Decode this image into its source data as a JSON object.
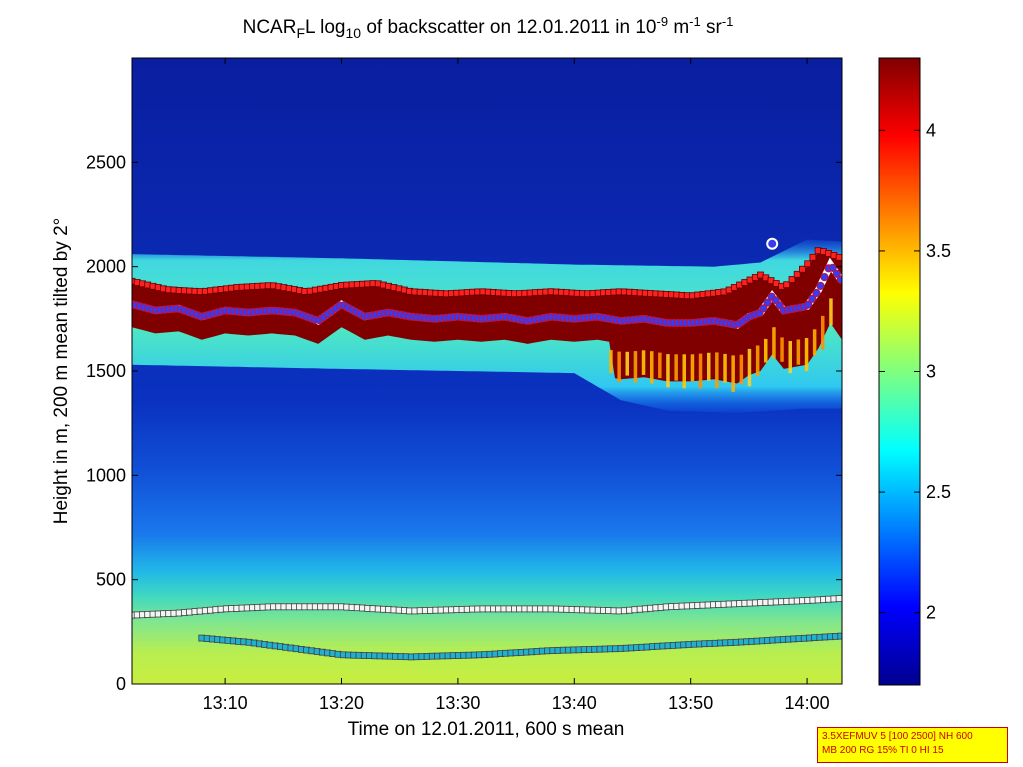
{
  "chart_data": {
    "type": "heatmap",
    "title": "NCAR_F L log10 of backscatter on 12.01.2011 in 10^-9 m^-1 sr^-1",
    "title_parts": {
      "t1": "NCAR",
      "t1_sub": "F",
      "t2": "L log",
      "t2_sub": "10",
      "t3": " of backscatter on 12.01.2011 in 10",
      "t3_sup": "-9",
      "t4": " m",
      "t4_sup": "-1",
      "t5": " sr",
      "t5_sup": "-1"
    },
    "xlabel": "Time on 12.01.2011, 600 s mean",
    "ylabel": "Height in m, 200 m mean tilted by 2°",
    "x_ticks": [
      "13:10",
      "13:20",
      "13:30",
      "13:40",
      "13:50",
      "14:00"
    ],
    "y_ticks": [
      "0",
      "500",
      "1000",
      "1500",
      "2000",
      "2500"
    ],
    "y_tick_values": [
      0,
      500,
      1000,
      1500,
      2000,
      2500
    ],
    "xlim": [
      "13:02",
      "14:03"
    ],
    "ylim": [
      0,
      3000
    ],
    "colorbar": {
      "ticks": [
        "2",
        "2.5",
        "3",
        "3.5",
        "4"
      ],
      "tick_values": [
        2,
        2.5,
        3,
        3.5,
        4
      ],
      "range": [
        1.7,
        4.3
      ],
      "colormap": "jet"
    },
    "layers": {
      "cloud_top_m": [
        [
          "13:02",
          2040
        ],
        [
          "13:20",
          2020
        ],
        [
          "13:40",
          1990
        ],
        [
          "13:52",
          1980
        ],
        [
          "13:56",
          2000
        ],
        [
          "14:00",
          2110
        ],
        [
          "14:03",
          2100
        ]
      ],
      "cloud_base_m": [
        [
          "13:02",
          1560
        ],
        [
          "13:20",
          1540
        ],
        [
          "13:40",
          1520
        ],
        [
          "13:44",
          1390
        ],
        [
          "13:48",
          1340
        ],
        [
          "13:54",
          1330
        ],
        [
          "14:00",
          1350
        ],
        [
          "14:03",
          1350
        ]
      ]
    },
    "series": [
      {
        "marker": "upper boundary",
        "color": "#ff2020",
        "points": [
          [
            "13:02",
            1930
          ],
          [
            "13:05",
            1890
          ],
          [
            "13:08",
            1880
          ],
          [
            "13:11",
            1900
          ],
          [
            "13:14",
            1910
          ],
          [
            "13:17",
            1880
          ],
          [
            "13:20",
            1910
          ],
          [
            "13:23",
            1920
          ],
          [
            "13:26",
            1880
          ],
          [
            "13:29",
            1870
          ],
          [
            "13:32",
            1880
          ],
          [
            "13:35",
            1870
          ],
          [
            "13:38",
            1880
          ],
          [
            "13:41",
            1870
          ],
          [
            "13:44",
            1880
          ],
          [
            "13:47",
            1870
          ],
          [
            "13:50",
            1860
          ],
          [
            "13:53",
            1880
          ],
          [
            "13:56",
            1960
          ],
          [
            "13:58",
            1900
          ],
          [
            "14:00",
            2010
          ],
          [
            "14:01",
            2080
          ],
          [
            "14:03",
            2040
          ]
        ]
      },
      {
        "marker": "main layer (circles)",
        "color": "#3a3af0",
        "points": [
          [
            "13:02",
            1820
          ],
          [
            "13:04",
            1790
          ],
          [
            "13:06",
            1800
          ],
          [
            "13:08",
            1760
          ],
          [
            "13:10",
            1790
          ],
          [
            "13:12",
            1780
          ],
          [
            "13:14",
            1790
          ],
          [
            "13:16",
            1780
          ],
          [
            "13:18",
            1740
          ],
          [
            "13:20",
            1820
          ],
          [
            "13:22",
            1760
          ],
          [
            "13:24",
            1780
          ],
          [
            "13:26",
            1760
          ],
          [
            "13:28",
            1750
          ],
          [
            "13:30",
            1760
          ],
          [
            "13:32",
            1750
          ],
          [
            "13:34",
            1760
          ],
          [
            "13:36",
            1740
          ],
          [
            "13:38",
            1760
          ],
          [
            "13:40",
            1750
          ],
          [
            "13:42",
            1760
          ],
          [
            "13:44",
            1740
          ],
          [
            "13:46",
            1750
          ],
          [
            "13:48",
            1730
          ],
          [
            "13:50",
            1730
          ],
          [
            "13:52",
            1740
          ],
          [
            "13:54",
            1720
          ],
          [
            "13:55",
            1760
          ],
          [
            "13:56",
            1780
          ],
          [
            "13:57",
            1860
          ],
          [
            "13:58",
            1790
          ],
          [
            "14:00",
            1810
          ],
          [
            "14:01",
            1890
          ],
          [
            "14:02",
            2010
          ],
          [
            "14:03",
            1930
          ]
        ]
      },
      {
        "marker": "upper aerosol boundary",
        "color": "#f4f4f4",
        "points": [
          [
            "13:02",
            330
          ],
          [
            "13:06",
            340
          ],
          [
            "13:10",
            360
          ],
          [
            "13:14",
            370
          ],
          [
            "13:20",
            370
          ],
          [
            "13:26",
            350
          ],
          [
            "13:32",
            360
          ],
          [
            "13:38",
            360
          ],
          [
            "13:44",
            350
          ],
          [
            "13:48",
            370
          ],
          [
            "13:52",
            380
          ],
          [
            "13:56",
            390
          ],
          [
            "14:00",
            400
          ],
          [
            "14:03",
            410
          ]
        ]
      },
      {
        "marker": "lower aerosol boundary",
        "color": "#20b0d0",
        "points": [
          [
            "13:08",
            220
          ],
          [
            "13:12",
            200
          ],
          [
            "13:16",
            170
          ],
          [
            "13:20",
            140
          ],
          [
            "13:26",
            130
          ],
          [
            "13:32",
            140
          ],
          [
            "13:38",
            160
          ],
          [
            "13:44",
            170
          ],
          [
            "13:50",
            190
          ],
          [
            "13:54",
            200
          ],
          [
            "14:00",
            220
          ],
          [
            "14:03",
            230
          ]
        ]
      }
    ],
    "isolated_markers": [
      {
        "time": "13:57",
        "height": 2110,
        "color": "#3a3af0"
      }
    ]
  },
  "info_box": {
    "line1": "3.5XEFMUV 5 [100 2500] NH 600",
    "line2": "MB 200 RG 15% TI 0 HI 15"
  }
}
